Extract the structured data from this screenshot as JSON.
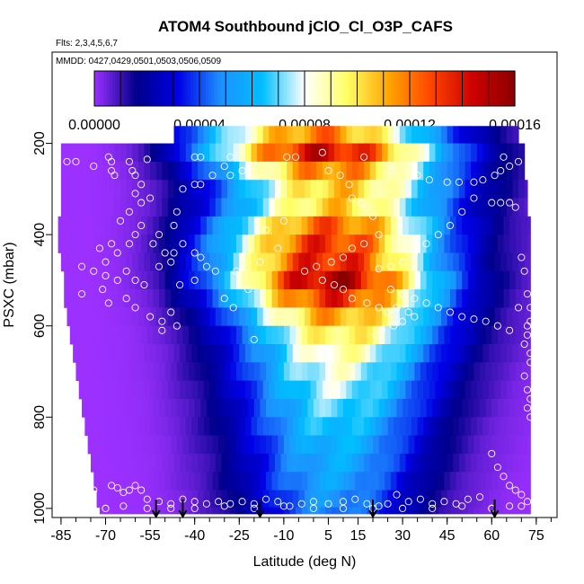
{
  "chart_data": {
    "type": "heatmap",
    "title": "ATOM4 Southbound jClO_Cl_O3P_CAFS",
    "flights_note": "Flts: 2,3,4,5,6,7",
    "dates_note": "MMDD: 0427,0429,0501,0503,0506,0509",
    "xlabel": "Latitude (deg N)",
    "ylabel": "PSXC (mbar)",
    "xlim": [
      -88,
      82
    ],
    "ylim": [
      1020,
      0
    ],
    "x_ticks": [
      -85,
      -70,
      -55,
      -40,
      -25,
      -10,
      5,
      15,
      30,
      45,
      60,
      75
    ],
    "x_tick_labels": [
      "-85",
      "-70",
      "-55",
      "-40",
      "-25",
      "-10",
      "5",
      "15",
      "30",
      "45",
      "60",
      "75"
    ],
    "y_ticks": [
      200,
      400,
      600,
      800,
      1000
    ],
    "y_tick_labels": [
      "200",
      "400",
      "600",
      "800",
      "1000"
    ],
    "colorbar": {
      "min": 0,
      "max": 0.00016,
      "tick_values": [
        0,
        4e-05,
        8e-05,
        0.00012,
        0.00016
      ],
      "tick_labels": [
        "0.00000",
        "0.00004",
        "0.00008",
        "0.00012",
        "0.00016"
      ],
      "colors": [
        "#9b30ff",
        "#00008b",
        "#0000e6",
        "#1e90ff",
        "#00bfff",
        "#ffffff",
        "#ffff66",
        "#ffa500",
        "#ff4500",
        "#cd0000",
        "#8b0000"
      ]
    },
    "pressure_levels": [
      180,
      220,
      260,
      300,
      340,
      380,
      420,
      460,
      500,
      540,
      580,
      620,
      660,
      700,
      740,
      780,
      820,
      860,
      900,
      940,
      980,
      1015
    ],
    "lat_bounds_south": [
      -47,
      -85,
      -85,
      -85,
      -85,
      -86,
      -86,
      -85,
      -84,
      -84,
      -83,
      -82,
      -81,
      -80,
      -79,
      -78,
      -77,
      -76,
      -75,
      -74,
      -73,
      -72
    ],
    "lat_bounds_north": [
      69,
      71,
      71,
      72,
      72,
      73,
      73,
      73,
      73,
      73,
      73,
      73,
      73,
      73,
      73,
      73,
      73,
      73,
      73,
      73,
      73,
      73
    ],
    "j_peak_center_lat": [
      2,
      4,
      6,
      8,
      7,
      6,
      5,
      5,
      6,
      7,
      8,
      9,
      9,
      8,
      8,
      8,
      7,
      7,
      7,
      6,
      6,
      6
    ],
    "j_peak_values": [
      0.000125,
      0.00015,
      0.000125,
      0.000112,
      0.00011,
      0.00013,
      0.00014,
      0.000145,
      0.000158,
      0.00014,
      0.000118,
      0.000104,
      9.3e-05,
      8.6e-05,
      8e-05,
      7.4e-05,
      6.9e-05,
      6.4e-05,
      6e-05,
      5.7e-05,
      5.3e-05,
      5e-05
    ],
    "sample_points": [
      [
        -83,
        240
      ],
      [
        -80,
        240
      ],
      [
        -74,
        250
      ],
      [
        -69,
        230
      ],
      [
        -68,
        240
      ],
      [
        -68,
        260
      ],
      [
        -67,
        270
      ],
      [
        -62,
        240
      ],
      [
        -61,
        260
      ],
      [
        -60,
        270
      ],
      [
        -58,
        290
      ],
      [
        -56,
        235
      ],
      [
        -60,
        310
      ],
      [
        -62,
        350
      ],
      [
        -58,
        330
      ],
      [
        -55,
        320
      ],
      [
        -65,
        370
      ],
      [
        -68,
        420
      ],
      [
        -72,
        430
      ],
      [
        -78,
        470
      ],
      [
        -70,
        490
      ],
      [
        -66,
        500
      ],
      [
        -63,
        480
      ],
      [
        -60,
        500
      ],
      [
        -57,
        510
      ],
      [
        -71,
        520
      ],
      [
        -63,
        540
      ],
      [
        -60,
        560
      ],
      [
        -78,
        530
      ],
      [
        -69,
        550
      ],
      [
        -55,
        580
      ],
      [
        -51,
        590
      ],
      [
        -51,
        610
      ],
      [
        -46,
        600
      ],
      [
        -48,
        570
      ],
      [
        -52,
        470
      ],
      [
        -47,
        440
      ],
      [
        -44,
        420
      ],
      [
        -40,
        440
      ],
      [
        -38,
        450
      ],
      [
        -36,
        470
      ],
      [
        -40,
        500
      ],
      [
        -45,
        510
      ],
      [
        -47,
        380
      ],
      [
        -46,
        350
      ],
      [
        -44,
        300
      ],
      [
        -40,
        290
      ],
      [
        -38,
        290
      ],
      [
        -34,
        270
      ],
      [
        -30,
        250
      ],
      [
        -40,
        230
      ],
      [
        -38,
        230
      ],
      [
        -28,
        230
      ],
      [
        -24,
        260
      ],
      [
        -28,
        270
      ],
      [
        -27,
        560
      ],
      [
        -30,
        540
      ],
      [
        -22,
        520
      ],
      [
        -33,
        480
      ],
      [
        -26,
        480
      ],
      [
        -18,
        460
      ],
      [
        -12,
        430
      ],
      [
        -16,
        390
      ],
      [
        -10,
        370
      ],
      [
        -20,
        630
      ],
      [
        -9,
        230
      ],
      [
        -6,
        230
      ],
      [
        3,
        220
      ],
      [
        5,
        260
      ],
      [
        9,
        270
      ],
      [
        12,
        290
      ],
      [
        17,
        230
      ],
      [
        13,
        320
      ],
      [
        16,
        330
      ],
      [
        18,
        340
      ],
      [
        20,
        360
      ],
      [
        22,
        400
      ],
      [
        17,
        420
      ],
      [
        13,
        430
      ],
      [
        10,
        450
      ],
      [
        6,
        460
      ],
      [
        1,
        470
      ],
      [
        -3,
        480
      ],
      [
        3,
        500
      ],
      [
        7,
        510
      ],
      [
        10,
        520
      ],
      [
        13,
        540
      ],
      [
        18,
        550
      ],
      [
        22,
        560
      ],
      [
        25,
        570
      ],
      [
        28,
        560
      ],
      [
        32,
        570
      ],
      [
        34,
        580
      ],
      [
        30,
        590
      ],
      [
        27,
        600
      ],
      [
        23,
        610
      ],
      [
        21,
        620
      ],
      [
        26,
        260
      ],
      [
        32,
        265
      ],
      [
        35,
        270
      ],
      [
        39,
        280
      ],
      [
        45,
        285
      ],
      [
        49,
        285
      ],
      [
        54,
        285
      ],
      [
        57,
        280
      ],
      [
        61,
        270
      ],
      [
        63,
        260
      ],
      [
        66,
        250
      ],
      [
        69,
        240
      ],
      [
        64,
        230
      ],
      [
        60,
        330
      ],
      [
        63,
        330
      ],
      [
        66,
        330
      ],
      [
        68,
        340
      ],
      [
        69,
        560
      ],
      [
        72,
        600
      ],
      [
        72,
        620
      ],
      [
        71,
        640
      ],
      [
        73,
        660
      ],
      [
        73,
        680
      ],
      [
        71,
        710
      ],
      [
        72,
        740
      ],
      [
        73,
        760
      ],
      [
        72,
        780
      ],
      [
        73,
        800
      ],
      [
        60,
        880
      ],
      [
        62,
        910
      ],
      [
        64,
        930
      ],
      [
        66,
        950
      ],
      [
        68,
        960
      ],
      [
        70,
        970
      ],
      [
        72,
        985
      ],
      [
        66,
        995
      ],
      [
        60,
        1000
      ],
      [
        56,
        975
      ],
      [
        52,
        980
      ],
      [
        48,
        990
      ],
      [
        44,
        985
      ],
      [
        40,
        990
      ],
      [
        36,
        980
      ],
      [
        32,
        985
      ],
      [
        28,
        970
      ],
      [
        25,
        990
      ],
      [
        22,
        995
      ],
      [
        18,
        990
      ],
      [
        14,
        980
      ],
      [
        10,
        985
      ],
      [
        5,
        990
      ],
      [
        0,
        985
      ],
      [
        -4,
        990
      ],
      [
        -8,
        995
      ],
      [
        -12,
        985
      ],
      [
        -16,
        980
      ],
      [
        -20,
        990
      ],
      [
        -24,
        985
      ],
      [
        -28,
        990
      ],
      [
        -32,
        985
      ],
      [
        -36,
        990
      ],
      [
        -40,
        985
      ],
      [
        -44,
        980
      ],
      [
        -48,
        990
      ],
      [
        -52,
        985
      ],
      [
        -56,
        980
      ],
      [
        -58,
        960
      ],
      [
        -60,
        950
      ],
      [
        -62,
        960
      ],
      [
        -64,
        965
      ],
      [
        -66,
        955
      ],
      [
        -68,
        950
      ],
      [
        -74,
        960
      ],
      [
        -78,
        1005
      ],
      [
        -70,
        1000
      ],
      [
        -64,
        995
      ],
      [
        -56,
        1000
      ],
      [
        -48,
        1000
      ],
      [
        -40,
        1000
      ],
      [
        -30,
        995
      ],
      [
        -20,
        1000
      ],
      [
        -10,
        995
      ],
      [
        0,
        1000
      ],
      [
        10,
        1000
      ],
      [
        20,
        1000
      ],
      [
        30,
        1000
      ],
      [
        40,
        1000
      ],
      [
        50,
        995
      ],
      [
        60,
        1000
      ],
      [
        70,
        995
      ],
      [
        73,
        560
      ],
      [
        73,
        590
      ],
      [
        72,
        530
      ],
      [
        71,
        480
      ],
      [
        70,
        450
      ],
      [
        54,
        320
      ],
      [
        50,
        350
      ],
      [
        46,
        380
      ],
      [
        42,
        400
      ],
      [
        38,
        420
      ],
      [
        34,
        440
      ],
      [
        30,
        460
      ],
      [
        26,
        470
      ],
      [
        22,
        475
      ],
      [
        26,
        520
      ],
      [
        30,
        530
      ],
      [
        34,
        540
      ],
      [
        38,
        550
      ],
      [
        42,
        560
      ],
      [
        46,
        570
      ],
      [
        50,
        580
      ],
      [
        54,
        585
      ],
      [
        58,
        590
      ],
      [
        62,
        600
      ],
      [
        66,
        610
      ],
      [
        -52,
        400
      ],
      [
        -54,
        420
      ],
      [
        -50,
        440
      ],
      [
        -48,
        460
      ],
      [
        -58,
        380
      ],
      [
        -60,
        400
      ],
      [
        -62,
        420
      ],
      [
        -66,
        440
      ],
      [
        -70,
        460
      ],
      [
        -74,
        480
      ]
    ],
    "flight_markers_lat": [
      -53,
      -44,
      -18,
      20,
      61
    ]
  }
}
